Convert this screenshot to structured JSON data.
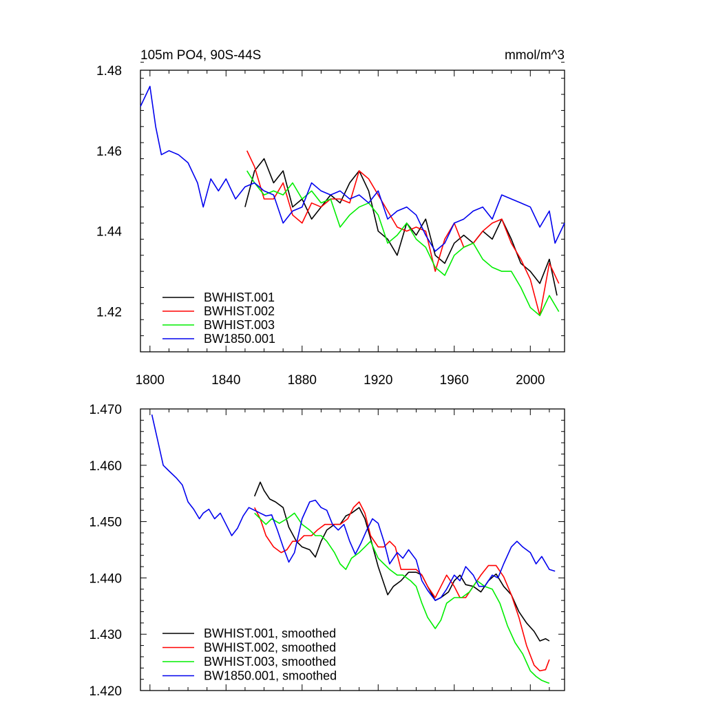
{
  "chart_data": [
    {
      "type": "line",
      "title": "105m PO4, 90S-44S",
      "units_label": "mmol/m^3",
      "xlim": [
        1795,
        2018
      ],
      "ylim": [
        1.41,
        1.48
      ],
      "x_ticks": [
        1800,
        1840,
        1880,
        1920,
        1960,
        2000
      ],
      "x_tick_labels": [
        "1800",
        "1840",
        "1880",
        "1920",
        "1960",
        "2000"
      ],
      "y_ticks": [
        1.42,
        1.44,
        1.46,
        1.48
      ],
      "y_tick_labels": [
        "1.42",
        "1.44",
        "1.46",
        "1.48"
      ],
      "legend_placement": "bottom-left",
      "series": [
        {
          "name": "BWHIST.001",
          "color": "#000000",
          "x": [
            1850,
            1855,
            1860,
            1865,
            1870,
            1875,
            1880,
            1885,
            1890,
            1895,
            1900,
            1905,
            1910,
            1915,
            1920,
            1925,
            1930,
            1935,
            1940,
            1945,
            1950,
            1955,
            1960,
            1965,
            1970,
            1975,
            1980,
            1985,
            1990,
            1995,
            2000,
            2005,
            2010,
            2014
          ],
          "y": [
            1.446,
            1.455,
            1.458,
            1.452,
            1.455,
            1.446,
            1.448,
            1.443,
            1.446,
            1.449,
            1.447,
            1.452,
            1.455,
            1.45,
            1.44,
            1.438,
            1.434,
            1.442,
            1.439,
            1.443,
            1.434,
            1.432,
            1.437,
            1.439,
            1.437,
            1.44,
            1.438,
            1.443,
            1.438,
            1.432,
            1.43,
            1.427,
            1.433,
            1.424
          ]
        },
        {
          "name": "BWHIST.002",
          "color": "#ff0000",
          "x": [
            1851,
            1855,
            1860,
            1865,
            1870,
            1875,
            1880,
            1885,
            1890,
            1895,
            1900,
            1905,
            1910,
            1915,
            1920,
            1925,
            1930,
            1935,
            1940,
            1945,
            1950,
            1955,
            1960,
            1965,
            1970,
            1975,
            1980,
            1985,
            1990,
            1995,
            2000,
            2005,
            2010,
            2015
          ],
          "y": [
            1.46,
            1.456,
            1.448,
            1.448,
            1.452,
            1.444,
            1.442,
            1.447,
            1.446,
            1.448,
            1.448,
            1.447,
            1.455,
            1.453,
            1.449,
            1.445,
            1.441,
            1.44,
            1.441,
            1.44,
            1.43,
            1.438,
            1.442,
            1.436,
            1.437,
            1.44,
            1.442,
            1.443,
            1.437,
            1.433,
            1.428,
            1.419,
            1.432,
            1.427
          ]
        },
        {
          "name": "BWHIST.003",
          "color": "#00ee00",
          "x": [
            1851,
            1855,
            1860,
            1865,
            1870,
            1875,
            1880,
            1885,
            1890,
            1895,
            1900,
            1905,
            1910,
            1915,
            1920,
            1925,
            1930,
            1935,
            1940,
            1945,
            1950,
            1955,
            1960,
            1965,
            1970,
            1975,
            1980,
            1985,
            1990,
            1995,
            2000,
            2005,
            2010,
            2015
          ],
          "y": [
            1.455,
            1.452,
            1.449,
            1.45,
            1.449,
            1.452,
            1.448,
            1.45,
            1.447,
            1.448,
            1.441,
            1.444,
            1.446,
            1.447,
            1.444,
            1.437,
            1.439,
            1.442,
            1.438,
            1.436,
            1.431,
            1.429,
            1.434,
            1.436,
            1.437,
            1.433,
            1.431,
            1.43,
            1.43,
            1.426,
            1.421,
            1.419,
            1.424,
            1.42
          ]
        },
        {
          "name": "BW1850.001",
          "color": "#0000ee",
          "x": [
            1795,
            1798,
            1800,
            1803,
            1806,
            1810,
            1815,
            1820,
            1825,
            1828,
            1832,
            1836,
            1840,
            1845,
            1850,
            1855,
            1860,
            1865,
            1870,
            1875,
            1880,
            1885,
            1890,
            1895,
            1900,
            1905,
            1910,
            1915,
            1920,
            1925,
            1930,
            1935,
            1940,
            1945,
            1950,
            1955,
            1960,
            1965,
            1970,
            1975,
            1980,
            1985,
            1990,
            1995,
            2000,
            2005,
            2010,
            2013,
            2018
          ],
          "y": [
            1.471,
            1.474,
            1.476,
            1.466,
            1.459,
            1.46,
            1.459,
            1.457,
            1.452,
            1.446,
            1.453,
            1.45,
            1.453,
            1.448,
            1.451,
            1.452,
            1.45,
            1.449,
            1.442,
            1.445,
            1.446,
            1.452,
            1.45,
            1.449,
            1.45,
            1.448,
            1.449,
            1.447,
            1.45,
            1.443,
            1.445,
            1.446,
            1.444,
            1.439,
            1.435,
            1.437,
            1.442,
            1.443,
            1.445,
            1.446,
            1.443,
            1.449,
            1.448,
            1.447,
            1.446,
            1.441,
            1.445,
            1.437,
            1.442
          ]
        }
      ]
    },
    {
      "type": "line",
      "xlim": [
        1795,
        2018
      ],
      "ylim": [
        1.42,
        1.47
      ],
      "x_ticks": [
        1800,
        1840,
        1880,
        1920,
        1960,
        2000
      ],
      "y_ticks": [
        1.42,
        1.43,
        1.44,
        1.45,
        1.46,
        1.47
      ],
      "y_tick_labels": [
        "1.420",
        "1.430",
        "1.440",
        "1.450",
        "1.460",
        "1.470"
      ],
      "legend_placement": "bottom-left",
      "series": [
        {
          "name": "BWHIST.001, smoothed",
          "color": "#000000",
          "x": [
            1855,
            1858,
            1860,
            1863,
            1866,
            1870,
            1873,
            1877,
            1880,
            1884,
            1887,
            1890,
            1893,
            1897,
            1900,
            1903,
            1906,
            1910,
            1913,
            1916,
            1920,
            1923,
            1925,
            1928,
            1932,
            1936,
            1940,
            1943,
            1946,
            1950,
            1953,
            1957,
            1960,
            1963,
            1966,
            1970,
            1974,
            1978,
            1982,
            1986,
            1990,
            1994,
            1998,
            2002,
            2005,
            2008,
            2010
          ],
          "y": [
            1.4545,
            1.457,
            1.4555,
            1.454,
            1.4535,
            1.4525,
            1.449,
            1.4465,
            1.4455,
            1.445,
            1.4437,
            1.4465,
            1.4485,
            1.4495,
            1.4495,
            1.451,
            1.4515,
            1.4525,
            1.4505,
            1.447,
            1.442,
            1.439,
            1.437,
            1.4385,
            1.4395,
            1.441,
            1.441,
            1.4405,
            1.4385,
            1.436,
            1.4365,
            1.4375,
            1.4395,
            1.4405,
            1.4388,
            1.4385,
            1.4375,
            1.4395,
            1.4407,
            1.4385,
            1.437,
            1.434,
            1.432,
            1.4305,
            1.4288,
            1.4292,
            1.4288
          ]
        },
        {
          "name": "BWHIST.002, smoothed",
          "color": "#ff0000",
          "x": [
            1855,
            1858,
            1861,
            1865,
            1869,
            1872,
            1875,
            1878,
            1881,
            1885,
            1888,
            1892,
            1896,
            1900,
            1904,
            1907,
            1910,
            1913,
            1916,
            1920,
            1923,
            1926,
            1929,
            1932,
            1936,
            1940,
            1943,
            1946,
            1950,
            1953,
            1956,
            1960,
            1963,
            1966,
            1970,
            1974,
            1978,
            1982,
            1986,
            1990,
            1994,
            1998,
            2002,
            2005,
            2008,
            2010
          ],
          "y": [
            1.4525,
            1.4505,
            1.4475,
            1.4455,
            1.4445,
            1.445,
            1.4465,
            1.4465,
            1.4475,
            1.4475,
            1.4485,
            1.4495,
            1.4495,
            1.4495,
            1.4505,
            1.4525,
            1.4535,
            1.4515,
            1.4475,
            1.4455,
            1.4455,
            1.4465,
            1.4455,
            1.4415,
            1.4415,
            1.4415,
            1.4405,
            1.4385,
            1.4365,
            1.4385,
            1.4405,
            1.4385,
            1.4365,
            1.4365,
            1.4385,
            1.4405,
            1.4422,
            1.4422,
            1.4402,
            1.437,
            1.433,
            1.428,
            1.4245,
            1.4235,
            1.4237,
            1.4255
          ]
        },
        {
          "name": "BWHIST.003, smoothed",
          "color": "#00ee00",
          "x": [
            1855,
            1858,
            1861,
            1864,
            1868,
            1872,
            1876,
            1880,
            1884,
            1887,
            1890,
            1893,
            1897,
            1900,
            1903,
            1906,
            1910,
            1913,
            1916,
            1920,
            1923,
            1926,
            1930,
            1933,
            1937,
            1940,
            1943,
            1946,
            1950,
            1953,
            1956,
            1960,
            1964,
            1968,
            1972,
            1976,
            1980,
            1984,
            1988,
            1992,
            1996,
            2000,
            2003,
            2006,
            2009,
            2010
          ],
          "y": [
            1.4515,
            1.4505,
            1.4495,
            1.4505,
            1.4497,
            1.4505,
            1.4515,
            1.4495,
            1.4485,
            1.4475,
            1.4475,
            1.4465,
            1.4445,
            1.4425,
            1.4415,
            1.4435,
            1.4445,
            1.4455,
            1.4465,
            1.4435,
            1.4425,
            1.4415,
            1.4405,
            1.4405,
            1.4395,
            1.4385,
            1.4355,
            1.433,
            1.431,
            1.4325,
            1.4355,
            1.4365,
            1.4365,
            1.4375,
            1.4395,
            1.4385,
            1.438,
            1.4355,
            1.4315,
            1.4285,
            1.4265,
            1.4235,
            1.4225,
            1.4218,
            1.4214,
            1.4213
          ]
        },
        {
          "name": "BW1850.001, smoothed",
          "color": "#0000ee",
          "x": [
            1801,
            1804,
            1807,
            1810,
            1814,
            1817,
            1820,
            1823,
            1826,
            1828,
            1831,
            1834,
            1837,
            1840,
            1843,
            1846,
            1849,
            1852,
            1855,
            1858,
            1861,
            1864,
            1867,
            1870,
            1873,
            1876,
            1880,
            1884,
            1887,
            1890,
            1893,
            1896,
            1899,
            1902,
            1905,
            1908,
            1911,
            1914,
            1917,
            1920,
            1923,
            1926,
            1930,
            1933,
            1936,
            1940,
            1943,
            1946,
            1950,
            1953,
            1956,
            1960,
            1963,
            1966,
            1970,
            1973,
            1976,
            1980,
            1983,
            1986,
            1990,
            1993,
            1996,
            2000,
            2003,
            2006,
            2010,
            2013
          ],
          "y": [
            1.469,
            1.4645,
            1.46,
            1.459,
            1.4577,
            1.4565,
            1.4535,
            1.4522,
            1.4505,
            1.4515,
            1.4522,
            1.4505,
            1.4515,
            1.4495,
            1.4475,
            1.4488,
            1.451,
            1.4525,
            1.452,
            1.4515,
            1.451,
            1.4512,
            1.4485,
            1.4455,
            1.4428,
            1.4445,
            1.4505,
            1.4535,
            1.4538,
            1.4525,
            1.452,
            1.4495,
            1.4485,
            1.4495,
            1.4465,
            1.4442,
            1.4462,
            1.4485,
            1.4505,
            1.4497,
            1.4465,
            1.4425,
            1.4445,
            1.4435,
            1.445,
            1.4432,
            1.4395,
            1.4378,
            1.436,
            1.4365,
            1.438,
            1.4405,
            1.4395,
            1.442,
            1.4405,
            1.4385,
            1.4385,
            1.4405,
            1.44,
            1.4425,
            1.4455,
            1.4465,
            1.4455,
            1.4445,
            1.4425,
            1.4438,
            1.4415,
            1.4412
          ]
        }
      ]
    }
  ]
}
